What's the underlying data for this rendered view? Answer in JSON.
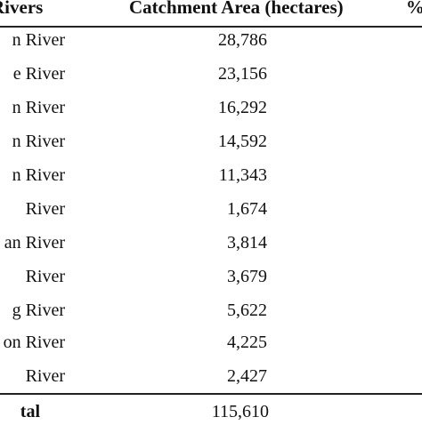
{
  "header": {
    "rivers": "Rivers",
    "catchment_area": "Catchment Area (hectares)",
    "percent": "%"
  },
  "rows": [
    {
      "river": "n River",
      "area": "28,786"
    },
    {
      "river": "e River",
      "area": "23,156"
    },
    {
      "river": "n River",
      "area": "16,292"
    },
    {
      "river": "n River",
      "area": "14,592"
    },
    {
      "river": "n River",
      "area": "11,343"
    },
    {
      "river": "River",
      "area": "1,674"
    },
    {
      "river": "an River",
      "area": "3,814"
    },
    {
      "river": "River",
      "area": "3,679"
    },
    {
      "river": "g River",
      "area": "5,622"
    },
    {
      "river": "on River",
      "area": "4,225"
    },
    {
      "river": "River",
      "area": "2,427"
    }
  ],
  "total": {
    "label": "tal",
    "area": "115,610"
  }
}
